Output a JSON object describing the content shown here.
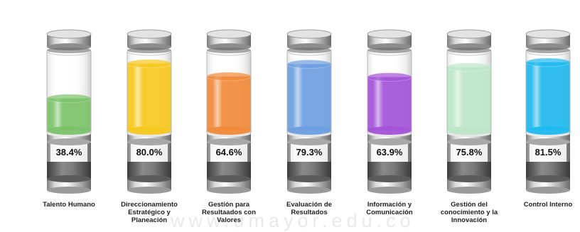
{
  "chart_data": {
    "type": "bar",
    "categories": [
      "Talento Humano",
      "Direccionamiento Estratégico y Planeación",
      "Gestión para Resultaados con Valores",
      "Evaluación de Resultados",
      "Información y Comunicación",
      "Gestión del conocimiento y la Innovación",
      "Control Interno"
    ],
    "values": [
      38.4,
      80.0,
      64.6,
      79.3,
      63.9,
      75.8,
      81.5
    ],
    "value_labels": [
      "38.4%",
      "80.0%",
      "64.6%",
      "79.3%",
      "63.9%",
      "75.8%",
      "81.5%"
    ],
    "unit": "%",
    "ylim": [
      0,
      100
    ],
    "colors": [
      "#7cc26a",
      "#f6c81e",
      "#f08a3a",
      "#6d9ee0",
      "#a353d8",
      "#bde6c7",
      "#1fb9ee"
    ],
    "title": "",
    "xlabel": "",
    "ylabel": "",
    "grid": false,
    "legend": "none"
  },
  "watermark_text": "www.umayor.edu.co"
}
